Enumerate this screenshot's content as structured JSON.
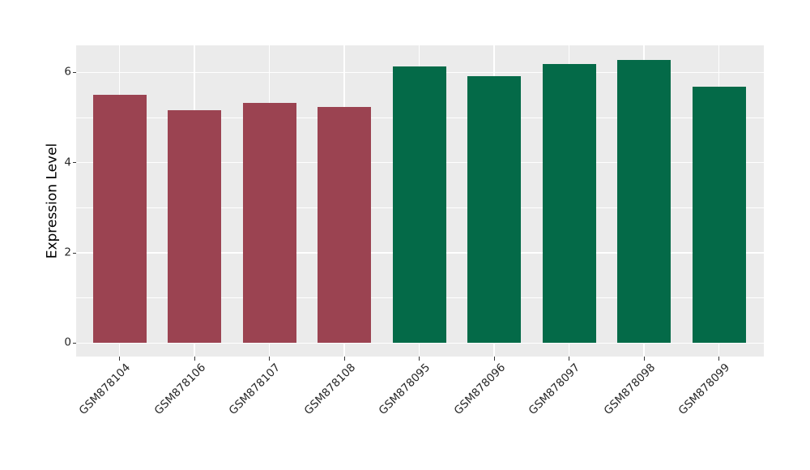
{
  "chart_data": {
    "type": "bar",
    "title": "",
    "ylabel": "Expression Level",
    "categories": [
      "GSM878104",
      "GSM878106",
      "GSM878107",
      "GSM878108",
      "GSM878095",
      "GSM878096",
      "GSM878097",
      "GSM878098",
      "GSM878099"
    ],
    "values": [
      5.51,
      5.17,
      5.32,
      5.23,
      6.13,
      5.92,
      6.19,
      6.27,
      5.69
    ],
    "bar_colors": [
      "#9B4351",
      "#9B4351",
      "#9B4351",
      "#9B4351",
      "#046A48",
      "#046A48",
      "#046A48",
      "#046A48",
      "#046A48"
    ],
    "group_colors": {
      "maroon": "#9B4351",
      "green": "#046A48"
    },
    "ylim": [
      -0.3,
      6.6
    ],
    "yticks": [
      0,
      2,
      4,
      6
    ],
    "minor_yticks": [
      1,
      3,
      5
    ],
    "grid": true,
    "legend": false,
    "panel_bg": "#EBEBEB",
    "grid_color": "#FFFFFF",
    "x_label_rotation_deg": 45
  }
}
